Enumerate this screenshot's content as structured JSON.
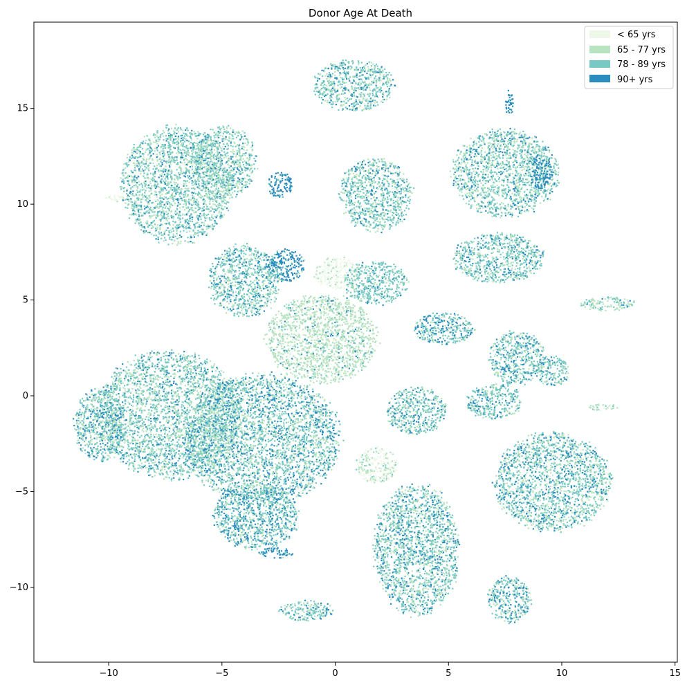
{
  "chart_data": {
    "type": "scatter",
    "title": "Donor Age At Death",
    "xlabel": "",
    "ylabel": "",
    "xlim": [
      -13.3,
      15.1
    ],
    "ylim": [
      -13.9,
      19.5
    ],
    "xticks": [
      -10,
      -5,
      0,
      5,
      10,
      15
    ],
    "yticks": [
      -10,
      -5,
      0,
      5,
      10,
      15
    ],
    "xtick_labels": [
      "−10",
      "−5",
      "0",
      "5",
      "10",
      "15"
    ],
    "ytick_labels": [
      "−10",
      "−5",
      "0",
      "5",
      "10",
      "15"
    ],
    "grid": false,
    "legend_position": "top-right",
    "series": [
      {
        "name": "< 65 yrs",
        "color": "#edf8e9"
      },
      {
        "name": "65 - 77 yrs",
        "color": "#b7e3c1"
      },
      {
        "name": "78 - 89 yrs",
        "color": "#78c9c3"
      },
      {
        "name": "90+ yrs",
        "color": "#2b8cbe"
      }
    ],
    "clusters": [
      {
        "cx": -7.0,
        "cy": 11.0,
        "rx": 2.6,
        "ry": 3.2,
        "mix": [
          0.05,
          0.35,
          0.45,
          0.15
        ]
      },
      {
        "cx": -4.9,
        "cy": 12.2,
        "rx": 1.5,
        "ry": 2.0,
        "mix": [
          0.05,
          0.4,
          0.4,
          0.15
        ]
      },
      {
        "cx": -2.4,
        "cy": 11.0,
        "rx": 0.6,
        "ry": 0.7,
        "mix": [
          0.0,
          0.05,
          0.1,
          0.85
        ]
      },
      {
        "cx": -9.6,
        "cy": 10.3,
        "rx": 0.6,
        "ry": 0.2,
        "mix": [
          0.8,
          0.2,
          0.0,
          0.0
        ]
      },
      {
        "cx": -4.0,
        "cy": 6.0,
        "rx": 1.7,
        "ry": 2.0,
        "mix": [
          0.03,
          0.25,
          0.55,
          0.17
        ]
      },
      {
        "cx": -2.2,
        "cy": 6.8,
        "rx": 0.9,
        "ry": 0.9,
        "mix": [
          0.0,
          0.05,
          0.15,
          0.8
        ]
      },
      {
        "cx": 0.1,
        "cy": 6.4,
        "rx": 1.1,
        "ry": 0.9,
        "mix": [
          0.75,
          0.25,
          0.0,
          0.0
        ]
      },
      {
        "cx": -0.6,
        "cy": 3.0,
        "rx": 2.6,
        "ry": 2.4,
        "mix": [
          0.1,
          0.75,
          0.1,
          0.05
        ]
      },
      {
        "cx": 1.8,
        "cy": 5.9,
        "rx": 1.5,
        "ry": 1.2,
        "mix": [
          0.05,
          0.15,
          0.7,
          0.1
        ]
      },
      {
        "cx": 0.8,
        "cy": 16.2,
        "rx": 1.9,
        "ry": 1.4,
        "mix": [
          0.03,
          0.3,
          0.47,
          0.2
        ]
      },
      {
        "cx": 1.8,
        "cy": 10.5,
        "rx": 1.7,
        "ry": 2.0,
        "mix": [
          0.03,
          0.3,
          0.5,
          0.17
        ]
      },
      {
        "cx": 7.5,
        "cy": 11.6,
        "rx": 2.5,
        "ry": 2.4,
        "mix": [
          0.03,
          0.35,
          0.45,
          0.17
        ]
      },
      {
        "cx": 9.1,
        "cy": 11.7,
        "rx": 0.5,
        "ry": 1.0,
        "mix": [
          0.0,
          0.05,
          0.15,
          0.8
        ]
      },
      {
        "cx": 7.7,
        "cy": 15.3,
        "rx": 0.2,
        "ry": 0.7,
        "mix": [
          0.0,
          0.0,
          0.1,
          0.9
        ]
      },
      {
        "cx": 7.2,
        "cy": 7.2,
        "rx": 2.1,
        "ry": 1.4,
        "mix": [
          0.03,
          0.25,
          0.52,
          0.2
        ]
      },
      {
        "cx": 4.8,
        "cy": 3.5,
        "rx": 1.4,
        "ry": 0.9,
        "mix": [
          0.02,
          0.2,
          0.48,
          0.3
        ]
      },
      {
        "cx": 8.0,
        "cy": 2.0,
        "rx": 1.3,
        "ry": 1.5,
        "mix": [
          0.02,
          0.25,
          0.5,
          0.23
        ]
      },
      {
        "cx": 9.6,
        "cy": 1.3,
        "rx": 0.8,
        "ry": 0.8,
        "mix": [
          0.02,
          0.25,
          0.5,
          0.23
        ]
      },
      {
        "cx": 7.0,
        "cy": -0.3,
        "rx": 1.3,
        "ry": 1.0,
        "mix": [
          0.02,
          0.25,
          0.5,
          0.23
        ]
      },
      {
        "cx": 3.6,
        "cy": -0.8,
        "rx": 1.4,
        "ry": 1.3,
        "mix": [
          0.02,
          0.25,
          0.5,
          0.23
        ]
      },
      {
        "cx": -7.3,
        "cy": -1.0,
        "rx": 3.4,
        "ry": 3.5,
        "mix": [
          0.05,
          0.35,
          0.45,
          0.15
        ]
      },
      {
        "cx": -10.4,
        "cy": -1.5,
        "rx": 1.2,
        "ry": 2.0,
        "mix": [
          0.05,
          0.3,
          0.4,
          0.25
        ]
      },
      {
        "cx": -3.2,
        "cy": -2.3,
        "rx": 3.6,
        "ry": 3.6,
        "mix": [
          0.03,
          0.27,
          0.45,
          0.25
        ]
      },
      {
        "cx": -3.5,
        "cy": -6.3,
        "rx": 2.0,
        "ry": 1.8,
        "mix": [
          0.02,
          0.2,
          0.45,
          0.33
        ]
      },
      {
        "cx": -2.6,
        "cy": -8.2,
        "rx": 0.8,
        "ry": 0.3,
        "mix": [
          0.0,
          0.05,
          0.15,
          0.8
        ]
      },
      {
        "cx": 1.8,
        "cy": -3.6,
        "rx": 1.0,
        "ry": 1.0,
        "mix": [
          0.55,
          0.35,
          0.1,
          0.0
        ]
      },
      {
        "cx": 3.6,
        "cy": -8.0,
        "rx": 2.0,
        "ry": 3.6,
        "mix": [
          0.03,
          0.3,
          0.45,
          0.22
        ]
      },
      {
        "cx": 9.6,
        "cy": -4.5,
        "rx": 2.7,
        "ry": 2.7,
        "mix": [
          0.03,
          0.28,
          0.47,
          0.22
        ]
      },
      {
        "cx": 7.7,
        "cy": -10.6,
        "rx": 1.0,
        "ry": 1.3,
        "mix": [
          0.02,
          0.25,
          0.5,
          0.23
        ]
      },
      {
        "cx": -1.3,
        "cy": -11.2,
        "rx": 1.2,
        "ry": 0.6,
        "mix": [
          0.03,
          0.3,
          0.45,
          0.22
        ]
      },
      {
        "cx": 12.0,
        "cy": 4.8,
        "rx": 1.3,
        "ry": 0.4,
        "mix": [
          0.1,
          0.5,
          0.35,
          0.05
        ]
      },
      {
        "cx": 11.8,
        "cy": -0.6,
        "rx": 0.7,
        "ry": 0.2,
        "mix": [
          0.1,
          0.7,
          0.2,
          0.0
        ]
      }
    ]
  }
}
